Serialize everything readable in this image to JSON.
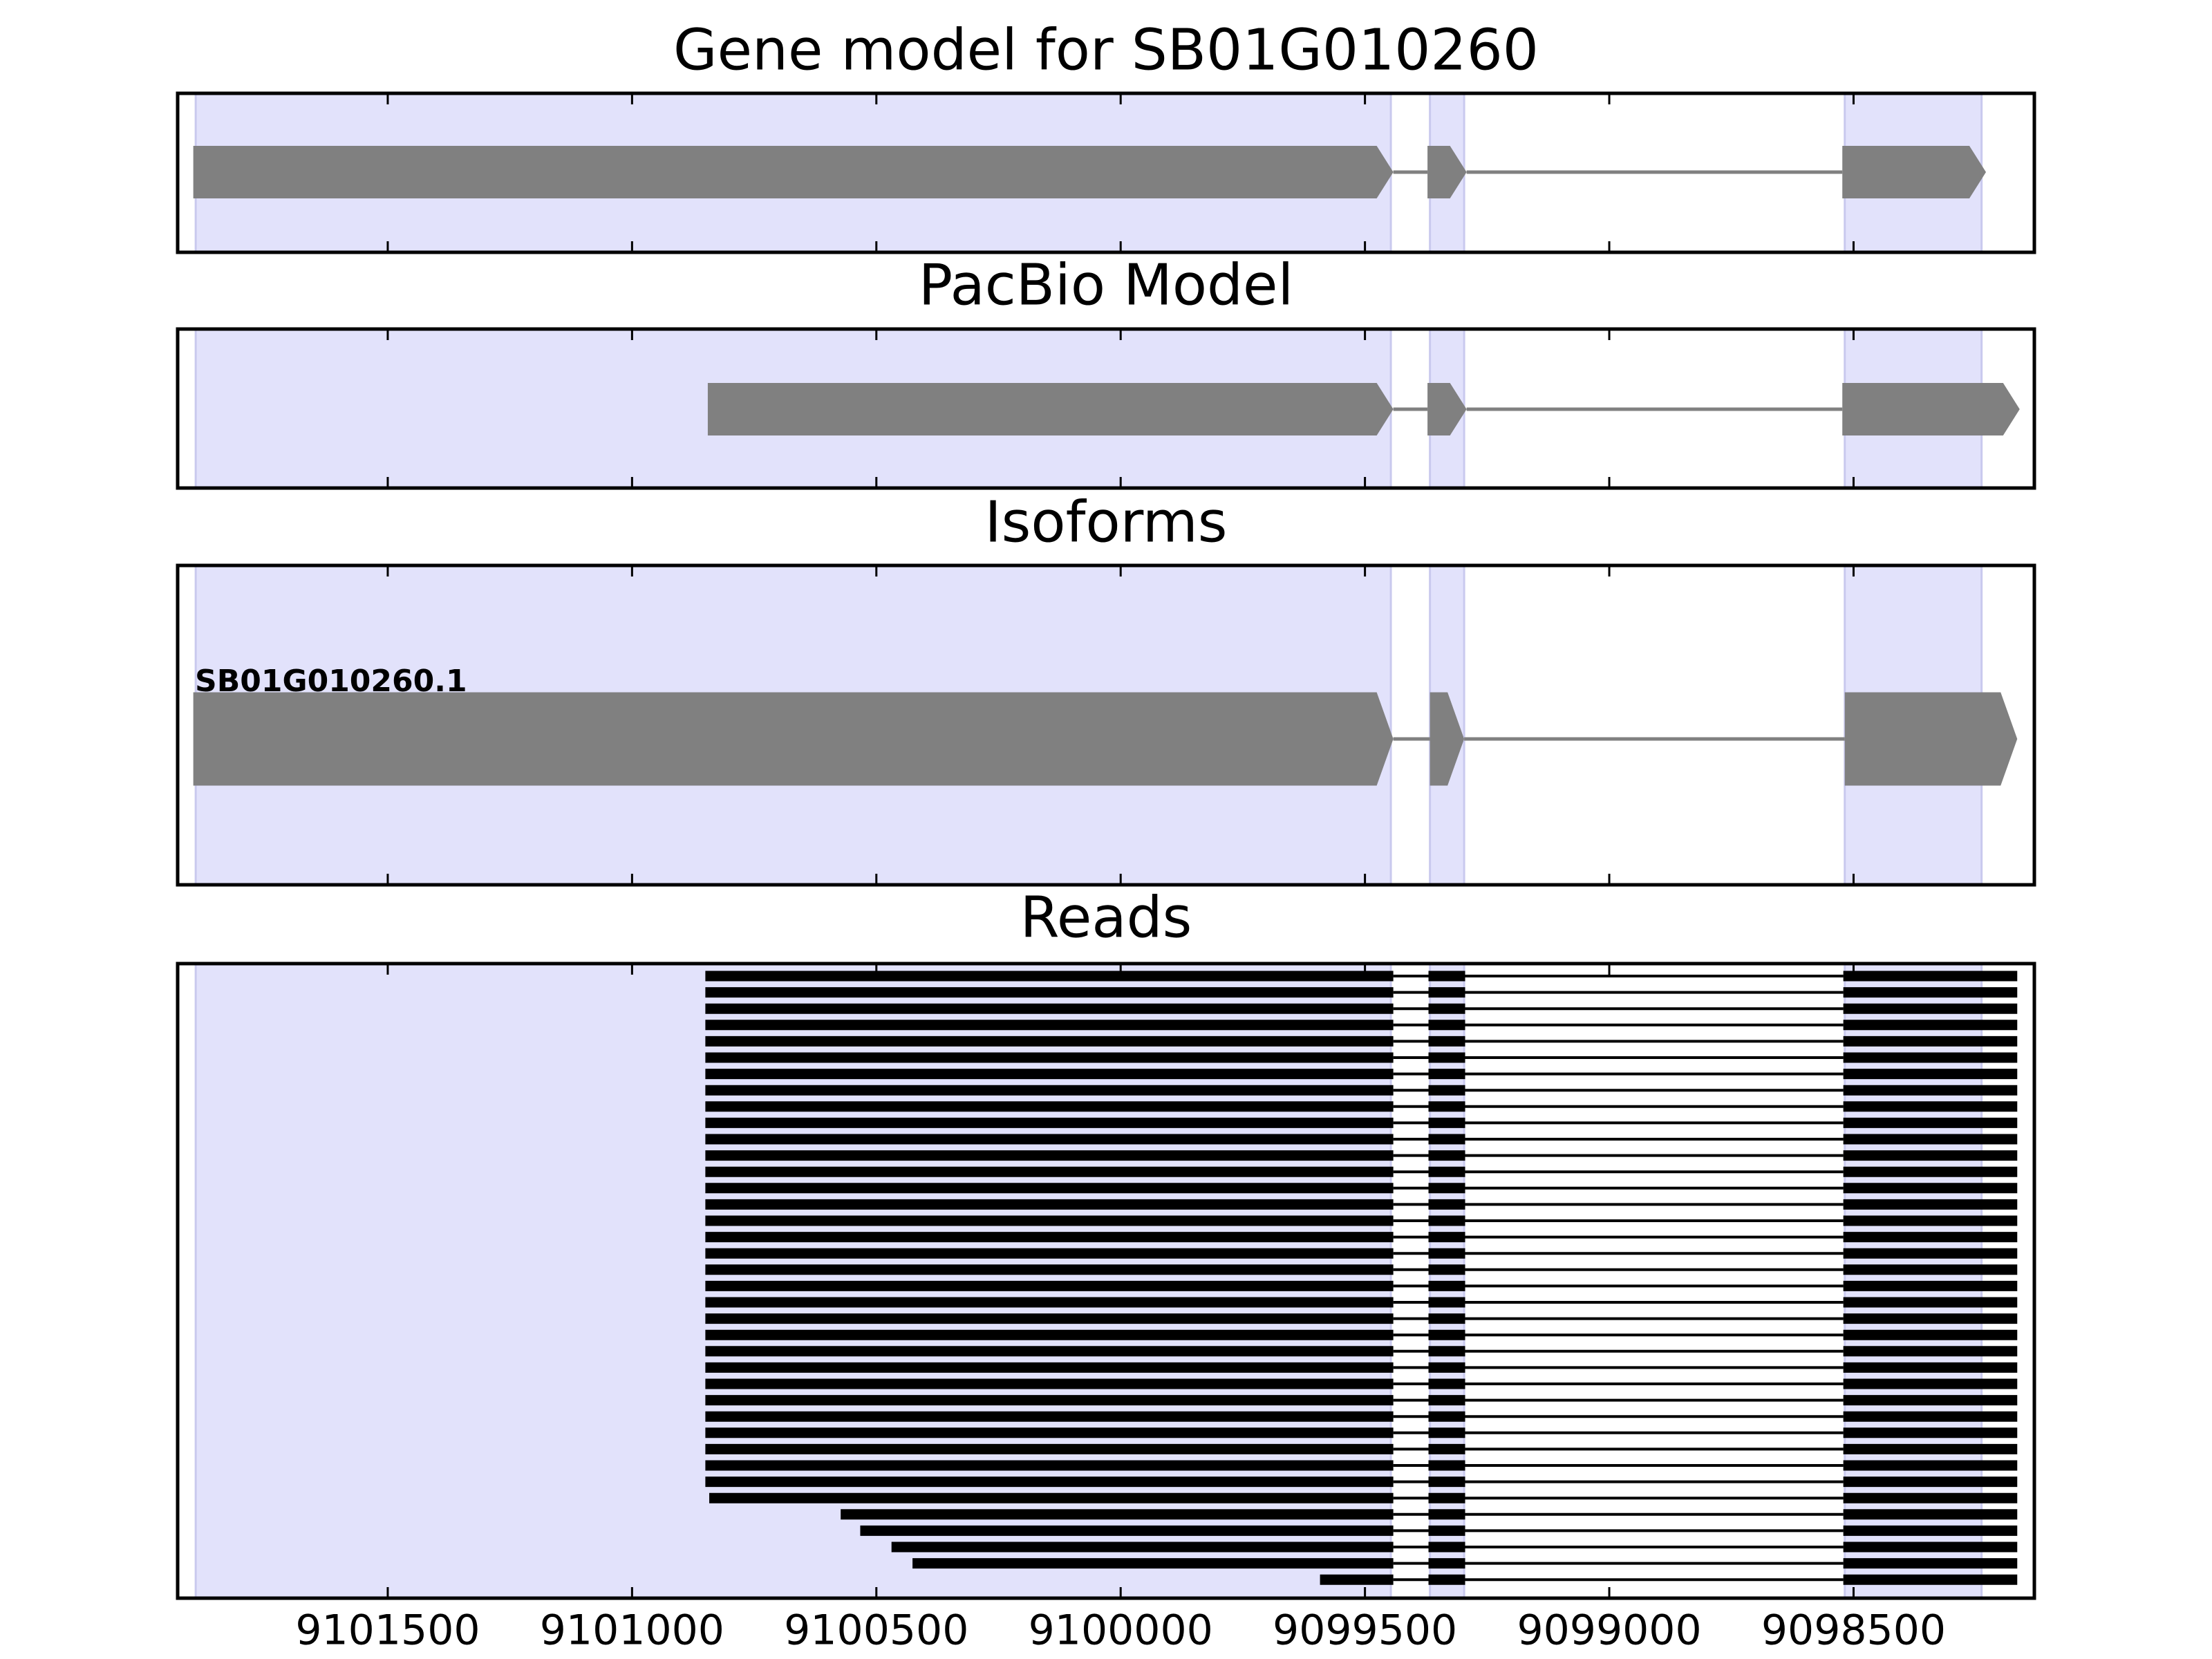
{
  "chart_data": [
    {
      "type": "gene",
      "title": "Gene model for SB01G010260",
      "xlim": [
        9101930,
        9098130
      ],
      "highlight_color": "#e2e2fb",
      "highlight_regions": [
        [
          9101893,
          9099447
        ],
        [
          9099367,
          9099297
        ],
        [
          9098518,
          9098238
        ]
      ],
      "color": "#808080",
      "features": [
        {
          "exons": [
            [
              9101898,
              9099442
            ],
            [
              9099372,
              9099292
            ],
            [
              9098523,
              9098229
            ]
          ]
        }
      ]
    },
    {
      "type": "gene",
      "title": "PacBio Model",
      "xlim": [
        9101930,
        9098130
      ],
      "highlight_color": "#e2e2fb",
      "highlight_regions": [
        [
          9101893,
          9099447
        ],
        [
          9099367,
          9099297
        ],
        [
          9098518,
          9098238
        ]
      ],
      "color": "#808080",
      "features": [
        {
          "exons": [
            [
              9100845,
              9099442
            ],
            [
              9099372,
              9099292
            ],
            [
              9098523,
              9098160
            ]
          ]
        }
      ]
    },
    {
      "type": "gene",
      "title": "Isoforms",
      "xlim": [
        9101930,
        9098130
      ],
      "highlight_color": "#e2e2fb",
      "highlight_regions": [
        [
          9101893,
          9099447
        ],
        [
          9099367,
          9099297
        ],
        [
          9098518,
          9098238
        ]
      ],
      "color": "#808080",
      "features": [
        {
          "name": "SB01G010260.1",
          "exons": [
            [
              9101898,
              9099442
            ],
            [
              9099367,
              9099297
            ],
            [
              9098518,
              9098165
            ]
          ]
        }
      ]
    },
    {
      "type": "reads",
      "title": "Reads",
      "xlim": [
        9101930,
        9098130
      ],
      "highlight_color": "#e2e2fb",
      "highlight_regions": [
        [
          9101893,
          9099447
        ],
        [
          9099367,
          9099297
        ],
        [
          9098518,
          9098238
        ]
      ],
      "color": "#000000",
      "xticks": [
        9101500,
        9101000,
        9100500,
        9100000,
        9099500,
        9099000,
        9098500
      ],
      "reads": [
        [
          [
            9100850,
            9099442
          ],
          [
            9099370,
            9099295
          ],
          [
            9098521,
            9098165
          ]
        ],
        [
          [
            9100850,
            9099442
          ],
          [
            9099370,
            9099295
          ],
          [
            9098521,
            9098165
          ]
        ],
        [
          [
            9100850,
            9099442
          ],
          [
            9099370,
            9099295
          ],
          [
            9098521,
            9098165
          ]
        ],
        [
          [
            9100850,
            9099442
          ],
          [
            9099370,
            9099295
          ],
          [
            9098521,
            9098165
          ]
        ],
        [
          [
            9100850,
            9099442
          ],
          [
            9099370,
            9099295
          ],
          [
            9098521,
            9098165
          ]
        ],
        [
          [
            9100850,
            9099442
          ],
          [
            9099370,
            9099295
          ],
          [
            9098521,
            9098165
          ]
        ],
        [
          [
            9100850,
            9099442
          ],
          [
            9099370,
            9099295
          ],
          [
            9098521,
            9098165
          ]
        ],
        [
          [
            9100850,
            9099442
          ],
          [
            9099370,
            9099295
          ],
          [
            9098521,
            9098165
          ]
        ],
        [
          [
            9100850,
            9099442
          ],
          [
            9099370,
            9099295
          ],
          [
            9098521,
            9098165
          ]
        ],
        [
          [
            9100850,
            9099442
          ],
          [
            9099370,
            9099295
          ],
          [
            9098521,
            9098165
          ]
        ],
        [
          [
            9100850,
            9099442
          ],
          [
            9099370,
            9099295
          ],
          [
            9098521,
            9098165
          ]
        ],
        [
          [
            9100850,
            9099442
          ],
          [
            9099370,
            9099295
          ],
          [
            9098521,
            9098165
          ]
        ],
        [
          [
            9100850,
            9099442
          ],
          [
            9099370,
            9099295
          ],
          [
            9098521,
            9098165
          ]
        ],
        [
          [
            9100850,
            9099442
          ],
          [
            9099370,
            9099295
          ],
          [
            9098521,
            9098165
          ]
        ],
        [
          [
            9100850,
            9099442
          ],
          [
            9099370,
            9099295
          ],
          [
            9098521,
            9098165
          ]
        ],
        [
          [
            9100850,
            9099442
          ],
          [
            9099370,
            9099295
          ],
          [
            9098521,
            9098165
          ]
        ],
        [
          [
            9100850,
            9099442
          ],
          [
            9099370,
            9099295
          ],
          [
            9098521,
            9098165
          ]
        ],
        [
          [
            9100850,
            9099442
          ],
          [
            9099370,
            9099295
          ],
          [
            9098521,
            9098165
          ]
        ],
        [
          [
            9100850,
            9099442
          ],
          [
            9099370,
            9099295
          ],
          [
            9098521,
            9098165
          ]
        ],
        [
          [
            9100850,
            9099442
          ],
          [
            9099370,
            9099295
          ],
          [
            9098521,
            9098165
          ]
        ],
        [
          [
            9100850,
            9099442
          ],
          [
            9099370,
            9099295
          ],
          [
            9098521,
            9098165
          ]
        ],
        [
          [
            9100850,
            9099442
          ],
          [
            9099370,
            9099295
          ],
          [
            9098521,
            9098165
          ]
        ],
        [
          [
            9100850,
            9099442
          ],
          [
            9099370,
            9099295
          ],
          [
            9098521,
            9098165
          ]
        ],
        [
          [
            9100850,
            9099442
          ],
          [
            9099370,
            9099295
          ],
          [
            9098521,
            9098165
          ]
        ],
        [
          [
            9100850,
            9099442
          ],
          [
            9099370,
            9099295
          ],
          [
            9098521,
            9098165
          ]
        ],
        [
          [
            9100850,
            9099442
          ],
          [
            9099370,
            9099295
          ],
          [
            9098521,
            9098165
          ]
        ],
        [
          [
            9100850,
            9099442
          ],
          [
            9099370,
            9099295
          ],
          [
            9098521,
            9098165
          ]
        ],
        [
          [
            9100850,
            9099442
          ],
          [
            9099370,
            9099295
          ],
          [
            9098521,
            9098165
          ]
        ],
        [
          [
            9100850,
            9099442
          ],
          [
            9099370,
            9099295
          ],
          [
            9098521,
            9098165
          ]
        ],
        [
          [
            9100850,
            9099442
          ],
          [
            9099370,
            9099295
          ],
          [
            9098521,
            9098165
          ]
        ],
        [
          [
            9100850,
            9099442
          ],
          [
            9099370,
            9099295
          ],
          [
            9098521,
            9098165
          ]
        ],
        [
          [
            9100850,
            9099442
          ],
          [
            9099370,
            9099295
          ],
          [
            9098521,
            9098165
          ]
        ],
        [
          [
            9100842,
            9099442
          ],
          [
            9099370,
            9099295
          ],
          [
            9098521,
            9098165
          ]
        ],
        [
          [
            9100573,
            9099442
          ],
          [
            9099370,
            9099295
          ],
          [
            9098521,
            9098165
          ]
        ],
        [
          [
            9100533,
            9099442
          ],
          [
            9099370,
            9099295
          ],
          [
            9098521,
            9098165
          ]
        ],
        [
          [
            9100469,
            9099442
          ],
          [
            9099370,
            9099295
          ],
          [
            9098521,
            9098165
          ]
        ],
        [
          [
            9100426,
            9099442
          ],
          [
            9099370,
            9099295
          ],
          [
            9098521,
            9098165
          ]
        ],
        [
          [
            9099592,
            9099442
          ],
          [
            9099370,
            9099295
          ],
          [
            9098521,
            9098165
          ]
        ]
      ]
    }
  ]
}
